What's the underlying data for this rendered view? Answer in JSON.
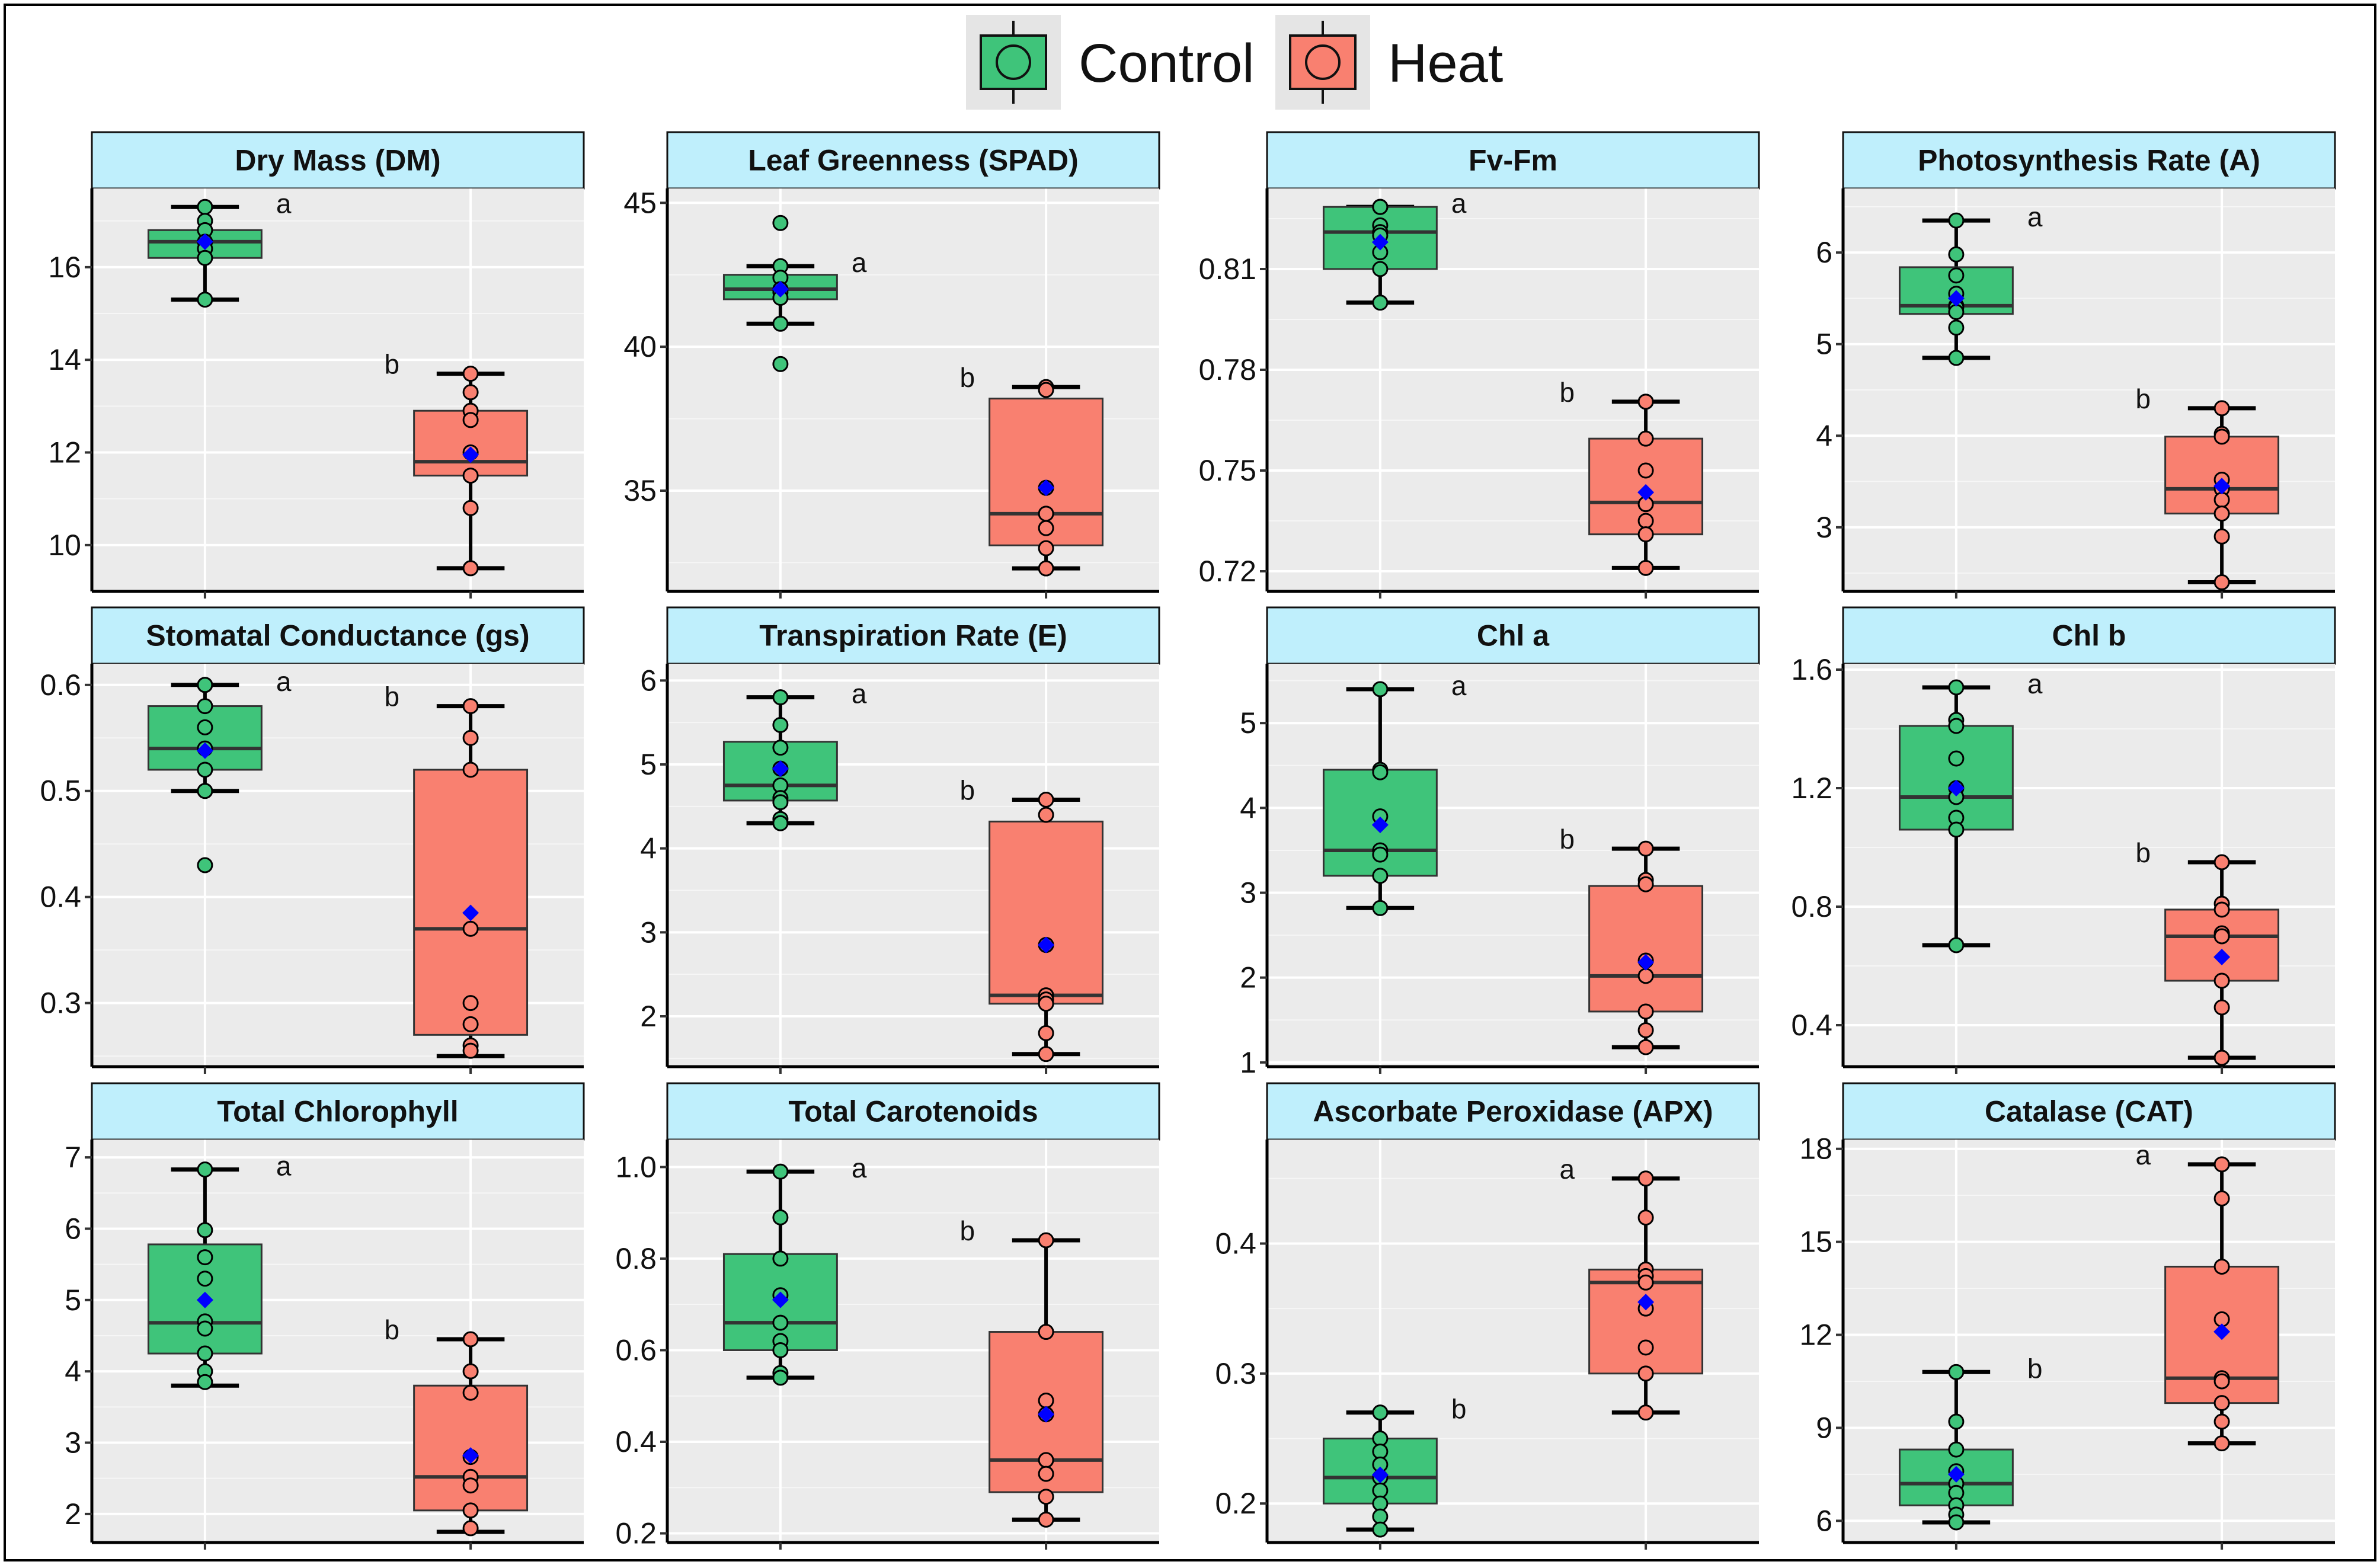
{
  "legend": {
    "items": [
      {
        "label": "Control",
        "color": "#3FC47A"
      },
      {
        "label": "Heat",
        "color": "#F98070"
      }
    ]
  },
  "colors": {
    "control": "#3FC47A",
    "heat": "#F98070",
    "mean_marker": "#0000FF",
    "panel_background": "#EBEBEB",
    "strip_background": "#BFEFFC"
  },
  "chart_data": [
    {
      "type": "box",
      "title": "Dry Mass (DM)",
      "ylim": [
        9.0,
        17.7
      ],
      "yticks": [
        10,
        12,
        14,
        16
      ],
      "tick_labels": [
        "10",
        "12",
        "14",
        "16"
      ],
      "series": [
        {
          "name": "Control",
          "box": {
            "min": 15.3,
            "q1": 16.2,
            "median": 16.55,
            "q3": 16.8,
            "max": 17.3
          },
          "mean": 16.55,
          "points": [
            17.3,
            17.3,
            17.0,
            16.8,
            16.55,
            16.4,
            16.2,
            15.3
          ],
          "sig": "a"
        },
        {
          "name": "Heat",
          "box": {
            "min": 9.5,
            "q1": 11.5,
            "median": 11.8,
            "q3": 12.9,
            "max": 13.7
          },
          "mean": 11.95,
          "points": [
            13.7,
            13.3,
            12.9,
            12.7,
            12.0,
            11.5,
            10.8,
            9.5
          ],
          "sig": "b"
        }
      ]
    },
    {
      "type": "box",
      "title": "Leaf Greenness (SPAD)",
      "ylim": [
        31.5,
        45.5
      ],
      "yticks": [
        35,
        40,
        45
      ],
      "tick_labels": [
        "35",
        "40",
        "45"
      ],
      "series": [
        {
          "name": "Control",
          "box": {
            "min": 40.8,
            "q1": 41.65,
            "median": 42.0,
            "q3": 42.5,
            "max": 42.8
          },
          "mean": 42.0,
          "points": [
            44.3,
            42.8,
            42.4,
            42.0,
            41.9,
            41.7,
            40.8,
            39.4
          ],
          "sig": "a"
        },
        {
          "name": "Heat",
          "box": {
            "min": 32.3,
            "q1": 33.1,
            "median": 34.2,
            "q3": 38.2,
            "max": 38.6
          },
          "mean": 35.1,
          "points": [
            38.6,
            38.5,
            35.1,
            34.2,
            33.7,
            33.0,
            32.3
          ],
          "sig": "b"
        }
      ]
    },
    {
      "type": "box",
      "title": "Fv-Fm",
      "ylim": [
        0.714,
        0.834
      ],
      "yticks": [
        0.72,
        0.75,
        0.78,
        0.81
      ],
      "tick_labels": [
        "0.72",
        "0.75",
        "0.78",
        "0.81"
      ],
      "series": [
        {
          "name": "Control",
          "box": {
            "min": 0.8,
            "q1": 0.81,
            "median": 0.821,
            "q3": 0.8285,
            "max": 0.8285
          },
          "mean": 0.818,
          "points": [
            0.8285,
            0.8285,
            0.8285,
            0.823,
            0.821,
            0.82,
            0.815,
            0.81,
            0.8
          ],
          "sig": "a"
        },
        {
          "name": "Heat",
          "box": {
            "min": 0.721,
            "q1": 0.731,
            "median": 0.7405,
            "q3": 0.7595,
            "max": 0.7705
          },
          "mean": 0.7435,
          "points": [
            0.7705,
            0.7705,
            0.7595,
            0.75,
            0.74,
            0.74,
            0.735,
            0.731,
            0.721
          ],
          "sig": "b"
        }
      ]
    },
    {
      "type": "box",
      "title": "Photosynthesis Rate (A)",
      "ylim": [
        2.3,
        6.7
      ],
      "yticks": [
        3,
        4,
        5,
        6
      ],
      "tick_labels": [
        "3",
        "4",
        "5",
        "6"
      ],
      "series": [
        {
          "name": "Control",
          "box": {
            "min": 4.85,
            "q1": 5.33,
            "median": 5.42,
            "q3": 5.84,
            "max": 6.35
          },
          "mean": 5.5,
          "points": [
            6.35,
            5.98,
            5.75,
            5.55,
            5.42,
            5.4,
            5.35,
            5.18,
            4.85
          ],
          "sig": "a"
        },
        {
          "name": "Heat",
          "box": {
            "min": 2.4,
            "q1": 3.15,
            "median": 3.42,
            "q3": 3.99,
            "max": 4.3
          },
          "mean": 3.45,
          "points": [
            4.3,
            4.02,
            3.99,
            3.52,
            3.42,
            3.3,
            3.15,
            2.9,
            2.4
          ],
          "sig": "b"
        }
      ]
    },
    {
      "type": "box",
      "title": "Stomatal Conductance (gs)",
      "ylim": [
        0.24,
        0.62
      ],
      "yticks": [
        0.3,
        0.4,
        0.5,
        0.6
      ],
      "tick_labels": [
        "0.3",
        "0.4",
        "0.5",
        "0.6"
      ],
      "series": [
        {
          "name": "Control",
          "box": {
            "min": 0.5,
            "q1": 0.52,
            "median": 0.54,
            "q3": 0.58,
            "max": 0.6
          },
          "mean": 0.538,
          "points": [
            0.6,
            0.6,
            0.58,
            0.56,
            0.54,
            0.52,
            0.5,
            0.5,
            0.43
          ],
          "sig": "a"
        },
        {
          "name": "Heat",
          "box": {
            "min": 0.25,
            "q1": 0.27,
            "median": 0.37,
            "q3": 0.52,
            "max": 0.58
          },
          "mean": 0.385,
          "points": [
            0.58,
            0.55,
            0.52,
            0.37,
            0.3,
            0.28,
            0.26,
            0.255
          ],
          "sig": "b"
        }
      ]
    },
    {
      "type": "box",
      "title": "Transpiration Rate (E)",
      "ylim": [
        1.4,
        6.2
      ],
      "yticks": [
        2,
        3,
        4,
        5,
        6
      ],
      "tick_labels": [
        "2",
        "3",
        "4",
        "5",
        "6"
      ],
      "series": [
        {
          "name": "Control",
          "box": {
            "min": 4.3,
            "q1": 4.57,
            "median": 4.75,
            "q3": 5.27,
            "max": 5.8
          },
          "mean": 4.95,
          "points": [
            5.8,
            5.47,
            5.2,
            4.95,
            4.75,
            4.6,
            4.55,
            4.35,
            4.3
          ],
          "sig": "a"
        },
        {
          "name": "Heat",
          "box": {
            "min": 1.55,
            "q1": 2.15,
            "median": 2.25,
            "q3": 4.32,
            "max": 4.58
          },
          "mean": 2.85,
          "points": [
            4.58,
            4.4,
            2.85,
            2.25,
            2.2,
            2.15,
            1.8,
            1.55
          ],
          "sig": "b"
        }
      ]
    },
    {
      "type": "box",
      "title": "Chl a",
      "ylim": [
        0.95,
        5.7
      ],
      "yticks": [
        1,
        2,
        3,
        4,
        5
      ],
      "tick_labels": [
        "1",
        "2",
        "3",
        "4",
        "5"
      ],
      "series": [
        {
          "name": "Control",
          "box": {
            "min": 2.82,
            "q1": 3.2,
            "median": 3.5,
            "q3": 4.45,
            "max": 5.4
          },
          "mean": 3.8,
          "points": [
            5.4,
            4.45,
            4.42,
            3.9,
            3.5,
            3.45,
            3.2,
            2.82
          ],
          "sig": "a"
        },
        {
          "name": "Heat",
          "box": {
            "min": 1.18,
            "q1": 1.6,
            "median": 2.02,
            "q3": 3.08,
            "max": 3.52
          },
          "mean": 2.18,
          "points": [
            3.52,
            3.15,
            3.1,
            2.2,
            2.02,
            1.6,
            1.38,
            1.18
          ],
          "sig": "b"
        }
      ]
    },
    {
      "type": "box",
      "title": "Chl b",
      "ylim": [
        0.26,
        1.62
      ],
      "yticks": [
        0.4,
        0.8,
        1.2,
        1.6
      ],
      "tick_labels": [
        "0.4",
        "0.8",
        "1.2",
        "1.6"
      ],
      "series": [
        {
          "name": "Control",
          "box": {
            "min": 0.67,
            "q1": 1.06,
            "median": 1.17,
            "q3": 1.41,
            "max": 1.54
          },
          "mean": 1.2,
          "points": [
            1.54,
            1.43,
            1.41,
            1.3,
            1.2,
            1.17,
            1.1,
            1.06,
            0.67
          ],
          "sig": "a"
        },
        {
          "name": "Heat",
          "box": {
            "min": 0.29,
            "q1": 0.55,
            "median": 0.7,
            "q3": 0.79,
            "max": 0.95
          },
          "mean": 0.63,
          "points": [
            0.95,
            0.81,
            0.79,
            0.71,
            0.7,
            0.55,
            0.46,
            0.29,
            0.29
          ],
          "sig": "b"
        }
      ]
    },
    {
      "type": "box",
      "title": "Total Chlorophyll",
      "ylim": [
        1.6,
        7.25
      ],
      "yticks": [
        2,
        3,
        4,
        5,
        6,
        7
      ],
      "tick_labels": [
        "2",
        "3",
        "4",
        "5",
        "6",
        "7"
      ],
      "series": [
        {
          "name": "Control",
          "box": {
            "min": 3.8,
            "q1": 4.25,
            "median": 4.68,
            "q3": 5.78,
            "max": 6.83
          },
          "mean": 5.0,
          "points": [
            6.83,
            5.98,
            5.6,
            5.3,
            4.7,
            4.6,
            4.25,
            4.0,
            3.85
          ],
          "sig": "a"
        },
        {
          "name": "Heat",
          "box": {
            "min": 1.75,
            "q1": 2.05,
            "median": 2.52,
            "q3": 3.8,
            "max": 4.45
          },
          "mean": 2.82,
          "points": [
            4.45,
            4.0,
            3.7,
            2.8,
            2.52,
            2.4,
            2.05,
            1.8
          ],
          "sig": "b"
        }
      ]
    },
    {
      "type": "box",
      "title": "Total Carotenoids",
      "ylim": [
        0.18,
        1.06
      ],
      "yticks": [
        0.2,
        0.4,
        0.6,
        0.8,
        1.0
      ],
      "tick_labels": [
        "0.2",
        "0.4",
        "0.6",
        "0.8",
        "1.0"
      ],
      "series": [
        {
          "name": "Control",
          "box": {
            "min": 0.54,
            "q1": 0.6,
            "median": 0.66,
            "q3": 0.81,
            "max": 0.99
          },
          "mean": 0.71,
          "points": [
            0.99,
            0.89,
            0.8,
            0.72,
            0.66,
            0.62,
            0.6,
            0.55,
            0.54
          ],
          "sig": "a"
        },
        {
          "name": "Heat",
          "box": {
            "min": 0.23,
            "q1": 0.29,
            "median": 0.36,
            "q3": 0.64,
            "max": 0.84
          },
          "mean": 0.46,
          "points": [
            0.84,
            0.64,
            0.49,
            0.46,
            0.36,
            0.33,
            0.28,
            0.23
          ],
          "sig": "b"
        }
      ]
    },
    {
      "type": "box",
      "title": "Ascorbate Peroxidase (APX)",
      "ylim": [
        0.17,
        0.48
      ],
      "yticks": [
        0.2,
        0.3,
        0.4
      ],
      "tick_labels": [
        "0.2",
        "0.3",
        "0.4"
      ],
      "series": [
        {
          "name": "Control",
          "box": {
            "min": 0.18,
            "q1": 0.2,
            "median": 0.22,
            "q3": 0.25,
            "max": 0.27
          },
          "mean": 0.222,
          "points": [
            0.27,
            0.25,
            0.24,
            0.23,
            0.22,
            0.21,
            0.2,
            0.19,
            0.18
          ],
          "sig": "b"
        },
        {
          "name": "Heat",
          "box": {
            "min": 0.27,
            "q1": 0.3,
            "median": 0.37,
            "q3": 0.38,
            "max": 0.45
          },
          "mean": 0.355,
          "points": [
            0.45,
            0.42,
            0.38,
            0.375,
            0.37,
            0.35,
            0.32,
            0.3,
            0.27
          ],
          "sig": "a"
        }
      ]
    },
    {
      "type": "box",
      "title": "Catalase (CAT)",
      "ylim": [
        5.3,
        18.3
      ],
      "yticks": [
        6,
        9,
        12,
        15,
        18
      ],
      "tick_labels": [
        "6",
        "9",
        "12",
        "15",
        "18"
      ],
      "series": [
        {
          "name": "Control",
          "box": {
            "min": 5.95,
            "q1": 6.5,
            "median": 7.2,
            "q3": 8.3,
            "max": 10.8
          },
          "mean": 7.5,
          "points": [
            10.8,
            9.2,
            8.3,
            7.6,
            7.2,
            6.9,
            6.5,
            6.2,
            5.95
          ],
          "sig": "b"
        },
        {
          "name": "Heat",
          "box": {
            "min": 8.5,
            "q1": 9.8,
            "median": 10.6,
            "q3": 14.2,
            "max": 17.5
          },
          "mean": 12.1,
          "points": [
            17.5,
            16.4,
            14.2,
            12.5,
            10.6,
            10.5,
            9.8,
            9.2,
            8.5
          ],
          "sig": "a"
        }
      ]
    }
  ]
}
